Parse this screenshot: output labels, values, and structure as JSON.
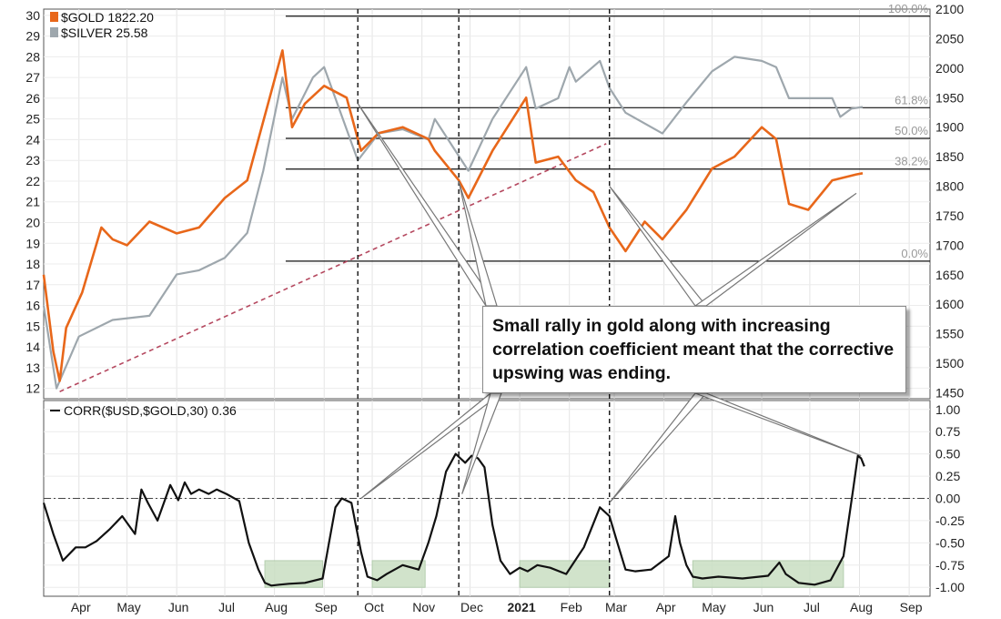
{
  "chart_data": [
    {
      "type": "line",
      "panel": "price",
      "series": [
        {
          "name": "$GOLD",
          "last_value_label": "1822.20",
          "color": "#e8671a",
          "axis": "right",
          "x": [
            "2020-03-10",
            "2020-03-16",
            "2020-03-20",
            "2020-03-24",
            "2020-04-03",
            "2020-04-15",
            "2020-04-22",
            "2020-05-01",
            "2020-05-15",
            "2020-06-01",
            "2020-06-15",
            "2020-07-01",
            "2020-07-15",
            "2020-07-28",
            "2020-08-06",
            "2020-08-12",
            "2020-08-20",
            "2020-09-01",
            "2020-09-15",
            "2020-09-24",
            "2020-10-05",
            "2020-10-20",
            "2020-11-05",
            "2020-11-09",
            "2020-11-24",
            "2020-11-30",
            "2020-12-15",
            "2021-01-05",
            "2021-01-11",
            "2021-01-25",
            "2021-02-05",
            "2021-02-16",
            "2021-02-26",
            "2021-03-08",
            "2021-03-20",
            "2021-03-31",
            "2021-04-15",
            "2021-05-01",
            "2021-05-15",
            "2021-06-01",
            "2021-06-10",
            "2021-06-18",
            "2021-06-30",
            "2021-07-15",
            "2021-07-30",
            "2021-08-03"
          ],
          "values": [
            1650,
            1520,
            1470,
            1560,
            1620,
            1730,
            1710,
            1700,
            1740,
            1720,
            1730,
            1780,
            1810,
            1940,
            2030,
            1900,
            1940,
            1970,
            1950,
            1860,
            1890,
            1900,
            1880,
            1860,
            1810,
            1780,
            1860,
            1950,
            1840,
            1850,
            1810,
            1790,
            1730,
            1690,
            1740,
            1710,
            1760,
            1830,
            1850,
            1900,
            1880,
            1770,
            1760,
            1810,
            1820,
            1822
          ]
        },
        {
          "name": "$SILVER",
          "last_value_label": "25.58",
          "color": "#9ea7ad",
          "axis": "left",
          "x": [
            "2020-03-10",
            "2020-03-18",
            "2020-04-01",
            "2020-04-22",
            "2020-05-15",
            "2020-06-01",
            "2020-06-15",
            "2020-07-01",
            "2020-07-15",
            "2020-07-25",
            "2020-08-06",
            "2020-08-12",
            "2020-08-25",
            "2020-09-01",
            "2020-09-22",
            "2020-10-05",
            "2020-10-20",
            "2020-11-05",
            "2020-11-09",
            "2020-11-30",
            "2020-12-15",
            "2021-01-05",
            "2021-01-11",
            "2021-01-25",
            "2021-02-01",
            "2021-02-05",
            "2021-02-20",
            "2021-02-26",
            "2021-03-08",
            "2021-03-31",
            "2021-04-15",
            "2021-05-01",
            "2021-05-15",
            "2021-06-01",
            "2021-06-10",
            "2021-06-18",
            "2021-07-15",
            "2021-07-20",
            "2021-07-27",
            "2021-08-03"
          ],
          "values": [
            16.0,
            12.0,
            14.5,
            15.3,
            15.5,
            17.5,
            17.7,
            18.3,
            19.5,
            22.5,
            27.0,
            25.0,
            27.0,
            27.5,
            23.0,
            24.3,
            24.5,
            24.0,
            25.0,
            22.5,
            25.0,
            27.5,
            25.5,
            26.0,
            27.5,
            26.8,
            27.8,
            26.5,
            25.3,
            24.3,
            25.8,
            27.3,
            28.0,
            27.8,
            27.5,
            26.0,
            26.0,
            25.1,
            25.5,
            25.58
          ]
        }
      ],
      "y_left": {
        "ylim": [
          11.5,
          30.3
        ],
        "ticks": [
          12,
          13,
          14,
          15,
          16,
          17,
          18,
          19,
          20,
          21,
          22,
          23,
          24,
          25,
          26,
          27,
          28,
          29,
          30
        ]
      },
      "y_right": {
        "ylim": [
          1440,
          2100
        ],
        "ticks": [
          1450,
          1500,
          1550,
          1600,
          1650,
          1700,
          1750,
          1800,
          1850,
          1900,
          1950,
          2000,
          2050,
          2100
        ]
      },
      "fib_levels": [
        {
          "label": "100.0%",
          "value": 2088
        },
        {
          "label": "61.8%",
          "value": 1933
        },
        {
          "label": "50.0%",
          "value": 1881
        },
        {
          "label": "38.2%",
          "value": 1829
        },
        {
          "label": "0.0%",
          "value": 1673
        }
      ],
      "trendline": {
        "from": [
          "2020-03-20",
          1452
        ],
        "to": [
          "2021-02-24",
          1872
        ],
        "color": "#b5485f"
      },
      "event_lines": [
        "2020-09-22",
        "2020-11-24",
        "2021-02-26"
      ],
      "grid": true
    },
    {
      "type": "line",
      "panel": "indicator",
      "series": [
        {
          "name": "CORR($USD,$GOLD,30)",
          "last_value_label": "0.36",
          "color": "#111111",
          "x": [
            "2020-03-10",
            "2020-03-16",
            "2020-03-22",
            "2020-03-30",
            "2020-04-05",
            "2020-04-12",
            "2020-04-20",
            "2020-04-28",
            "2020-05-06",
            "2020-05-10",
            "2020-05-14",
            "2020-05-20",
            "2020-05-24",
            "2020-05-28",
            "2020-06-02",
            "2020-06-06",
            "2020-06-10",
            "2020-06-15",
            "2020-06-21",
            "2020-06-26",
            "2020-07-02",
            "2020-07-10",
            "2020-07-16",
            "2020-07-22",
            "2020-07-26",
            "2020-07-30",
            "2020-08-04",
            "2020-08-10",
            "2020-08-20",
            "2020-08-31",
            "2020-09-04",
            "2020-09-08",
            "2020-09-12",
            "2020-09-18",
            "2020-09-24",
            "2020-09-28",
            "2020-10-04",
            "2020-10-10",
            "2020-10-20",
            "2020-10-30",
            "2020-11-05",
            "2020-11-10",
            "2020-11-16",
            "2020-11-22",
            "2020-11-28",
            "2020-12-02",
            "2020-12-06",
            "2020-12-10",
            "2020-12-15",
            "2020-12-20",
            "2020-12-26",
            "2021-01-01",
            "2021-01-06",
            "2021-01-12",
            "2021-01-20",
            "2021-01-30",
            "2021-02-10",
            "2021-02-20",
            "2021-02-26",
            "2021-03-03",
            "2021-03-08",
            "2021-03-14",
            "2021-03-24",
            "2021-04-04",
            "2021-04-08",
            "2021-04-11",
            "2021-04-15",
            "2021-04-19",
            "2021-04-25",
            "2021-05-05",
            "2021-05-20",
            "2021-06-05",
            "2021-06-12",
            "2021-06-16",
            "2021-06-24",
            "2021-07-04",
            "2021-07-14",
            "2021-07-22",
            "2021-07-28",
            "2021-07-31",
            "2021-08-02",
            "2021-08-04"
          ],
          "values": [
            -0.05,
            -0.4,
            -0.7,
            -0.55,
            -0.55,
            -0.48,
            -0.35,
            -0.2,
            -0.4,
            0.1,
            -0.05,
            -0.25,
            -0.05,
            0.15,
            -0.02,
            0.18,
            0.05,
            0.1,
            0.05,
            0.1,
            0.05,
            -0.03,
            -0.5,
            -0.8,
            -0.95,
            -0.98,
            -0.97,
            -0.96,
            -0.95,
            -0.9,
            -0.5,
            -0.1,
            0.0,
            -0.05,
            -0.6,
            -0.88,
            -0.92,
            -0.85,
            -0.75,
            -0.8,
            -0.5,
            -0.2,
            0.3,
            0.5,
            0.4,
            0.48,
            0.45,
            0.35,
            -0.3,
            -0.7,
            -0.85,
            -0.78,
            -0.82,
            -0.75,
            -0.78,
            -0.85,
            -0.55,
            -0.1,
            -0.2,
            -0.5,
            -0.8,
            -0.82,
            -0.8,
            -0.65,
            -0.2,
            -0.5,
            -0.75,
            -0.88,
            -0.9,
            -0.88,
            -0.9,
            -0.87,
            -0.72,
            -0.85,
            -0.95,
            -0.97,
            -0.92,
            -0.65,
            0.1,
            0.48,
            0.45,
            0.36
          ]
        }
      ],
      "ylim": [
        -1.1,
        1.1
      ],
      "ticks": [
        1.0,
        0.75,
        0.5,
        0.25,
        0.0,
        -0.25,
        -0.5,
        -0.75,
        -1.0
      ],
      "tick_labels": [
        "1.00",
        "0.75",
        "0.50",
        "0.25",
        "0.00",
        "-0.25",
        "-0.50",
        "-0.75",
        "-1.00"
      ],
      "zero_line": "dash-dot",
      "highlight_ranges": [
        [
          "2020-07-26",
          "2020-08-31"
        ],
        [
          "2020-10-01",
          "2020-11-03"
        ],
        [
          "2021-01-01",
          "2021-02-26"
        ],
        [
          "2021-04-19",
          "2021-07-22"
        ]
      ],
      "event_lines": [
        "2020-09-22",
        "2020-11-24",
        "2021-02-26"
      ]
    }
  ],
  "x_axis": {
    "ticks": [
      {
        "label": "Apr",
        "date": "2020-04-01",
        "bold": false
      },
      {
        "label": "May",
        "date": "2020-05-01",
        "bold": false
      },
      {
        "label": "Jun",
        "date": "2020-06-01",
        "bold": false
      },
      {
        "label": "Jul",
        "date": "2020-07-01",
        "bold": false
      },
      {
        "label": "Aug",
        "date": "2020-08-01",
        "bold": false
      },
      {
        "label": "Sep",
        "date": "2020-09-01",
        "bold": false
      },
      {
        "label": "Oct",
        "date": "2020-10-01",
        "bold": false
      },
      {
        "label": "Nov",
        "date": "2020-11-01",
        "bold": false
      },
      {
        "label": "Dec",
        "date": "2020-12-01",
        "bold": false
      },
      {
        "label": "2021",
        "date": "2021-01-01",
        "bold": true
      },
      {
        "label": "Feb",
        "date": "2021-02-01",
        "bold": false
      },
      {
        "label": "Mar",
        "date": "2021-03-01",
        "bold": false
      },
      {
        "label": "Apr",
        "date": "2021-04-01",
        "bold": false
      },
      {
        "label": "May",
        "date": "2021-05-01",
        "bold": false
      },
      {
        "label": "Jun",
        "date": "2021-06-01",
        "bold": false
      },
      {
        "label": "Jul",
        "date": "2021-07-01",
        "bold": false
      },
      {
        "label": "Aug",
        "date": "2021-08-01",
        "bold": false
      },
      {
        "label": "Sep",
        "date": "2021-09-01",
        "bold": false
      }
    ]
  },
  "annotation": {
    "text": "Small rally in gold along with increasing correlation coefficient meant that the corrective upswing was ending.",
    "targets": [
      {
        "series": "$GOLD",
        "date": "2020-09-22",
        "value": 1940
      },
      {
        "series": "$GOLD",
        "date": "2020-11-24",
        "value": 1808
      },
      {
        "series": "$GOLD",
        "date": "2021-02-26",
        "value": 1800
      },
      {
        "series": "$GOLD",
        "date": "2021-07-30",
        "value": 1788
      },
      {
        "series": "CORR($USD,$GOLD,30)",
        "date": "2020-09-24",
        "value": 0.0
      },
      {
        "series": "CORR($USD,$GOLD,30)",
        "date": "2020-11-26",
        "value": 0.05
      },
      {
        "series": "CORR($USD,$GOLD,30)",
        "date": "2021-02-26",
        "value": -0.05
      },
      {
        "series": "CORR($USD,$GOLD,30)",
        "date": "2021-08-02",
        "value": 0.48
      }
    ]
  }
}
